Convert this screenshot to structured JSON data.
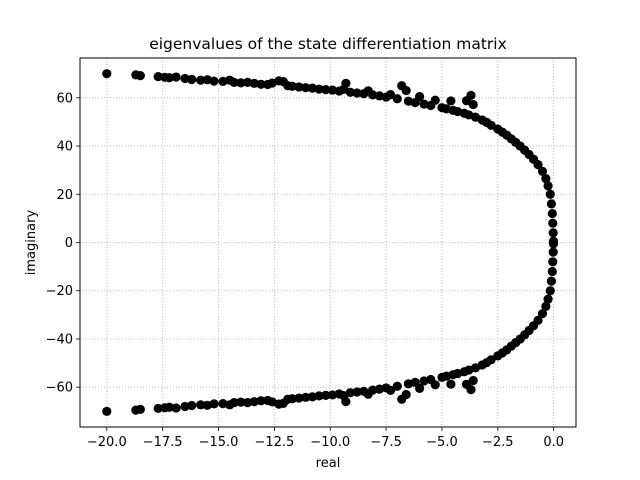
{
  "chart_data": {
    "type": "scatter",
    "title": "eigenvalues of the state differentiation matrix",
    "xlabel": "real",
    "ylabel": "imaginary",
    "xlim": [
      -21.2,
      1.0
    ],
    "ylim": [
      -76.5,
      76.5
    ],
    "xticks": [
      -20.0,
      -17.5,
      -15.0,
      -12.5,
      -10.0,
      -7.5,
      -5.0,
      -2.5,
      0.0
    ],
    "xtick_labels": [
      "−20.0",
      "−17.5",
      "−15.0",
      "−12.5",
      "−10.0",
      "−7.5",
      "−5.0",
      "−2.5",
      "0.0"
    ],
    "yticks": [
      -60,
      -40,
      -20,
      0,
      20,
      40,
      60
    ],
    "ytick_labels": [
      "−60",
      "−40",
      "−20",
      "0",
      "20",
      "40",
      "60"
    ],
    "grid": true,
    "grid_style": "dotted",
    "marker_color": "#000000",
    "marker": "filled-circle",
    "series": [
      {
        "points_upper_half": [
          [
            -20.0,
            70.0
          ],
          [
            -18.7,
            69.5
          ],
          [
            -18.5,
            69.2
          ],
          [
            -17.7,
            68.8
          ],
          [
            -17.4,
            68.5
          ],
          [
            -17.2,
            68.3
          ],
          [
            -16.9,
            68.6
          ],
          [
            -16.5,
            68.0
          ],
          [
            -16.2,
            67.6
          ],
          [
            -15.8,
            67.3
          ],
          [
            -15.5,
            67.5
          ],
          [
            -15.2,
            66.9
          ],
          [
            -14.8,
            66.8
          ],
          [
            -14.5,
            67.3
          ],
          [
            -14.3,
            66.4
          ],
          [
            -14.0,
            66.2
          ],
          [
            -13.7,
            66.4
          ],
          [
            -13.4,
            66.0
          ],
          [
            -13.1,
            65.6
          ],
          [
            -12.8,
            65.5
          ],
          [
            -12.6,
            66.1
          ],
          [
            -12.3,
            67.0
          ],
          [
            -12.1,
            66.7
          ],
          [
            -11.9,
            65.0
          ],
          [
            -11.7,
            64.8
          ],
          [
            -11.4,
            64.5
          ],
          [
            -11.1,
            64.2
          ],
          [
            -10.8,
            64.0
          ],
          [
            -10.5,
            63.6
          ],
          [
            -10.2,
            63.4
          ],
          [
            -9.9,
            63.2
          ],
          [
            -9.6,
            62.8
          ],
          [
            -9.4,
            63.5
          ],
          [
            -9.3,
            66.0
          ],
          [
            -9.1,
            62.3
          ],
          [
            -8.8,
            62.0
          ],
          [
            -8.5,
            61.7
          ],
          [
            -8.3,
            62.9
          ],
          [
            -8.1,
            61.2
          ],
          [
            -7.8,
            60.8
          ],
          [
            -7.5,
            60.3
          ],
          [
            -7.3,
            61.3
          ],
          [
            -7.0,
            59.6
          ],
          [
            -6.8,
            65.0
          ],
          [
            -6.6,
            63.0
          ],
          [
            -6.5,
            58.6
          ],
          [
            -6.2,
            58.0
          ],
          [
            -6.0,
            60.5
          ],
          [
            -5.8,
            57.4
          ],
          [
            -5.5,
            56.8
          ],
          [
            -5.3,
            59.0
          ],
          [
            -5.0,
            55.9
          ],
          [
            -4.8,
            55.4
          ],
          [
            -4.6,
            58.7
          ],
          [
            -4.5,
            54.8
          ],
          [
            -4.3,
            54.3
          ],
          [
            -4.0,
            53.6
          ],
          [
            -3.9,
            58.8
          ],
          [
            -3.7,
            61.0
          ],
          [
            -3.6,
            57.2
          ],
          [
            -3.8,
            52.9
          ],
          [
            -3.5,
            52.0
          ],
          [
            -3.2,
            50.8
          ],
          [
            -3.0,
            49.8
          ],
          [
            -2.8,
            48.6
          ],
          [
            -2.5,
            47.0
          ],
          [
            -2.3,
            45.8
          ],
          [
            -2.1,
            44.5
          ],
          [
            -1.9,
            43.0
          ],
          [
            -1.7,
            41.5
          ],
          [
            -1.5,
            40.0
          ],
          [
            -1.3,
            38.3
          ],
          [
            -1.1,
            36.5
          ],
          [
            -0.9,
            34.5
          ],
          [
            -0.7,
            32.3
          ],
          [
            -0.5,
            29.5
          ],
          [
            -0.35,
            26.5
          ],
          [
            -0.25,
            23.5
          ],
          [
            -0.15,
            20.0
          ],
          [
            -0.1,
            16.0
          ],
          [
            -0.06,
            12.0
          ],
          [
            -0.04,
            8.0
          ],
          [
            -0.02,
            4.0
          ],
          [
            -0.01,
            0.5
          ]
        ]
      }
    ]
  }
}
